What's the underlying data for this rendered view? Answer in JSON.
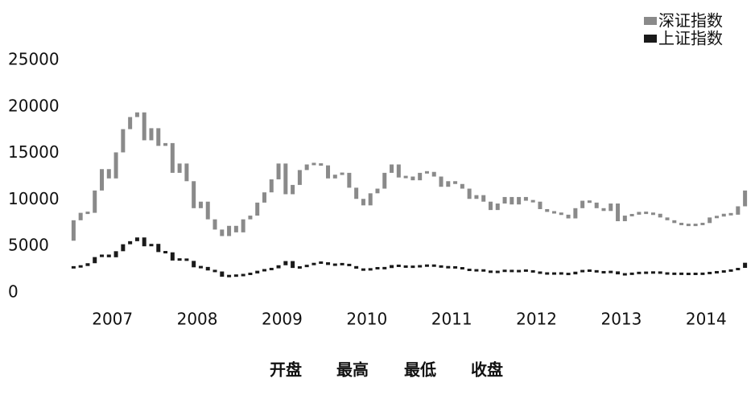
{
  "chart_data": {
    "type": "candlestick",
    "categories": [
      "2007",
      "2008",
      "2009",
      "2010",
      "2011",
      "2012",
      "2013",
      "2014"
    ],
    "ylim": [
      0,
      25000
    ],
    "yticks": [
      0,
      5000,
      10000,
      15000,
      20000,
      25000
    ],
    "legend_position": "upper right",
    "ohlc_labels": [
      "开盘",
      "最高",
      "最低",
      "收盘"
    ],
    "series": [
      {
        "name": "深证指数",
        "color": "#8a8a8a",
        "open": [
          5600,
          7800,
          8600,
          8600,
          11000,
          13300,
          12300,
          15100,
          17600,
          18900,
          19400,
          16400,
          17700,
          15800,
          16100,
          12900,
          13900,
          12000,
          9100,
          9800,
          7900,
          6800,
          6100,
          7200,
          6500,
          7900,
          8300,
          9700,
          10800,
          12200,
          13900,
          10600,
          11600,
          13200,
          13800,
          13900,
          13700,
          12300,
          12700,
          12900,
          11300,
          10100,
          9400,
          10700,
          11200,
          12900,
          13800,
          12400,
          12500,
          12100,
          12900,
          13000,
          12500,
          11400,
          12000,
          11700,
          11200,
          10100,
          10500,
          9800,
          8900,
          9600,
          10300,
          9500,
          10300,
          9900,
          9800,
          9000,
          8700,
          8600,
          8400,
          8000,
          9100,
          9900,
          9700,
          9100,
          8800,
          9600,
          7700,
          8300,
          8400,
          8700,
          8500,
          8500,
          8100,
          7800,
          7500,
          7300,
          7300,
          7300,
          7500,
          8100,
          8200,
          8500,
          8400,
          9300
        ],
        "close": [
          7800,
          8600,
          8600,
          11000,
          13300,
          12300,
          15100,
          17600,
          18900,
          19400,
          16400,
          17700,
          15800,
          16100,
          12900,
          13900,
          12000,
          9100,
          9800,
          7900,
          6800,
          6100,
          7200,
          6500,
          7900,
          8300,
          9700,
          10800,
          12200,
          13900,
          10600,
          11600,
          13200,
          13800,
          13900,
          13700,
          12300,
          12700,
          12900,
          11300,
          10100,
          9400,
          10700,
          11200,
          12900,
          13800,
          12400,
          12500,
          12100,
          12900,
          13000,
          12500,
          11400,
          12000,
          11700,
          11200,
          10100,
          10500,
          9800,
          8900,
          9600,
          10300,
          9500,
          10300,
          9900,
          9800,
          9000,
          8700,
          8600,
          8400,
          8000,
          9100,
          9900,
          9700,
          9100,
          8800,
          9600,
          7700,
          8300,
          8400,
          8700,
          8500,
          8500,
          8100,
          7800,
          7500,
          7300,
          7300,
          7300,
          7500,
          8100,
          8200,
          8500,
          8400,
          9300,
          11000
        ]
      },
      {
        "name": "上证指数",
        "color": "#1a1a1a",
        "open": [
          2680,
          2790,
          2880,
          3180,
          3840,
          4110,
          3820,
          4470,
          5220,
          5550,
          5950,
          5000,
          5260,
          4380,
          4350,
          3470,
          3690,
          3430,
          2740,
          2780,
          2400,
          2290,
          1730,
          1870,
          1820,
          1990,
          2080,
          2370,
          2480,
          2630,
          2960,
          3410,
          2670,
          2780,
          2990,
          3200,
          3280,
          2990,
          3050,
          3110,
          2870,
          2590,
          2400,
          2640,
          2640,
          2660,
          2980,
          2820,
          2810,
          2790,
          2910,
          2930,
          2910,
          2740,
          2760,
          2700,
          2570,
          2360,
          2470,
          2330,
          2200,
          2290,
          2430,
          2260,
          2400,
          2370,
          2230,
          2100,
          2050,
          2090,
          2070,
          1980,
          2270,
          2390,
          2370,
          2240,
          2180,
          2300,
          1980,
          1990,
          2100,
          2170,
          2140,
          2220,
          2120,
          2030,
          2060,
          2030,
          2030,
          2040,
          2050,
          2200,
          2220,
          2360,
          2420,
          2680
        ],
        "close": [
          2790,
          2880,
          3180,
          3840,
          4110,
          3820,
          4470,
          5220,
          5550,
          5950,
          5000,
          5260,
          4380,
          4350,
          3470,
          3690,
          3430,
          2740,
          2780,
          2400,
          2290,
          1730,
          1870,
          1820,
          1990,
          2080,
          2370,
          2480,
          2630,
          2960,
          3410,
          2670,
          2780,
          2990,
          3200,
          3280,
          2990,
          3050,
          3110,
          2870,
          2590,
          2400,
          2640,
          2640,
          2660,
          2980,
          2820,
          2810,
          2790,
          2910,
          2930,
          2910,
          2740,
          2760,
          2700,
          2570,
          2360,
          2470,
          2330,
          2200,
          2290,
          2430,
          2260,
          2400,
          2370,
          2230,
          2100,
          2050,
          2090,
          2070,
          1980,
          2270,
          2390,
          2370,
          2240,
          2180,
          2300,
          1980,
          1990,
          2100,
          2170,
          2140,
          2220,
          2120,
          2030,
          2060,
          2030,
          2030,
          2040,
          2050,
          2200,
          2220,
          2360,
          2420,
          2680,
          3230
        ]
      }
    ]
  }
}
